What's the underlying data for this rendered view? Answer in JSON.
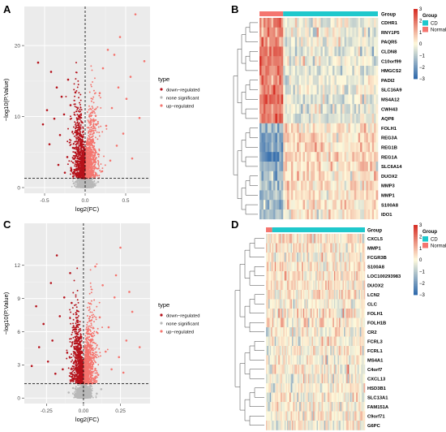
{
  "panels": [
    {
      "id": "A",
      "letter": "A",
      "kind": "volcano",
      "chart_data": {
        "type": "scatter",
        "xlabel": "log2(FC)",
        "ylabel": "−log10(P.Value)",
        "xlim": [
          -0.75,
          0.8
        ],
        "ylim": [
          -0.8,
          25.5
        ],
        "x_ticks": [
          -0.5,
          0.0,
          0.5
        ],
        "x_tick_labels": [
          "-0.5",
          "0.0",
          "0.5"
        ],
        "y_ticks": [
          0,
          10,
          20
        ],
        "y_tick_labels": [
          "0",
          "10",
          "20"
        ],
        "threshold_y": 1.3,
        "threshold_x": 0,
        "grid": true,
        "legend_position": "right",
        "legend_title": "type",
        "series": [
          {
            "name": "down−regulated",
            "color": "#b5121b",
            "points": [
              [
                -0.58,
                17.6
              ],
              [
                -0.42,
                16.3
              ],
              [
                -0.47,
                10.9
              ],
              [
                -0.35,
                14.1
              ],
              [
                -0.29,
                12.8
              ],
              [
                -0.52,
                8.9
              ],
              [
                -0.38,
                9.7
              ],
              [
                -0.21,
                15.2
              ],
              [
                -0.44,
                6.1
              ],
              [
                -0.31,
                7.4
              ],
              [
                -0.26,
                10.3
              ],
              [
                -0.18,
                11.6
              ],
              [
                -0.12,
                13.4
              ],
              [
                -0.09,
                8.1
              ],
              [
                -0.15,
                5.6
              ],
              [
                -0.22,
                4.3
              ],
              [
                -0.33,
                3.2
              ],
              [
                -0.06,
                6.8
              ],
              [
                -0.11,
                3.7
              ],
              [
                -0.04,
                9.2
              ],
              [
                -0.17,
                2.5
              ],
              [
                -0.25,
                2.1
              ],
              [
                -0.08,
                4.9
              ],
              [
                -0.03,
                2.9
              ]
            ]
          },
          {
            "name": "none significant",
            "color": "#b8b8b8",
            "points": [
              [
                -0.05,
                0.2
              ],
              [
                0.03,
                0.5
              ],
              [
                -0.1,
                0.9
              ],
              [
                0.12,
                0.4
              ],
              [
                0.07,
                1.0
              ],
              [
                -0.14,
                0.6
              ],
              [
                0.16,
                0.8
              ],
              [
                0.0,
                0.1
              ]
            ]
          },
          {
            "name": "up−regulated",
            "color": "#f4756f",
            "points": [
              [
                0.62,
                24.4
              ],
              [
                0.73,
                17.8
              ],
              [
                0.43,
                21.2
              ],
              [
                0.36,
                18.7
              ],
              [
                0.51,
                12.5
              ],
              [
                0.28,
                19.4
              ],
              [
                0.56,
                15.6
              ],
              [
                0.41,
                14.1
              ],
              [
                0.67,
                9.8
              ],
              [
                0.33,
                11.2
              ],
              [
                0.47,
                7.6
              ],
              [
                0.22,
                16.8
              ],
              [
                0.18,
                13.3
              ],
              [
                0.26,
                8.7
              ],
              [
                0.39,
                5.9
              ],
              [
                0.13,
                10.1
              ],
              [
                0.09,
                6.4
              ],
              [
                0.31,
                3.8
              ],
              [
                0.16,
                4.7
              ],
              [
                0.06,
                2.8
              ],
              [
                0.21,
                2.3
              ],
              [
                0.58,
                4.1
              ]
            ]
          }
        ]
      }
    },
    {
      "id": "B",
      "letter": "B",
      "kind": "heatmap",
      "chart_data": {
        "type": "heatmap",
        "group_label": "Group",
        "group_bar": {
          "labels": [
            "Normal",
            "CD"
          ],
          "fractions": [
            0.2,
            0.8
          ]
        },
        "legend_group_title": "Group",
        "legend_groups": [
          {
            "name": "CD",
            "color": "#1fc8cc"
          },
          {
            "name": "Normal",
            "color": "#f4756f"
          }
        ],
        "scale_ticks": [
          3,
          2,
          1,
          0,
          -1,
          -2,
          -3
        ],
        "scale_tick_labels": [
          "3",
          "2",
          "1",
          "0",
          "−1",
          "−2",
          "−3"
        ],
        "columns": 60,
        "rows": [
          {
            "label": "CDHR1",
            "normal_z": 1.6,
            "cd_z": -0.3
          },
          {
            "label": "RNY1P5",
            "normal_z": 1.5,
            "cd_z": -0.3
          },
          {
            "label": "PAQR5",
            "normal_z": 1.6,
            "cd_z": -0.3
          },
          {
            "label": "CLDN8",
            "normal_z": 1.9,
            "cd_z": -0.4
          },
          {
            "label": "C10orf99",
            "normal_z": 1.7,
            "cd_z": -0.3
          },
          {
            "label": "HMGCS2",
            "normal_z": 1.8,
            "cd_z": -0.4
          },
          {
            "label": "PADI2",
            "normal_z": 1.6,
            "cd_z": -0.3
          },
          {
            "label": "SLC16A9",
            "normal_z": 1.7,
            "cd_z": -0.3
          },
          {
            "label": "MS4A12",
            "normal_z": 1.9,
            "cd_z": -0.4
          },
          {
            "label": "CWH43",
            "normal_z": 1.8,
            "cd_z": -0.4
          },
          {
            "label": "AQP8",
            "normal_z": 2.0,
            "cd_z": -0.4
          },
          {
            "label": "FOLH1",
            "normal_z": -1.5,
            "cd_z": 0.4
          },
          {
            "label": "REG3A",
            "normal_z": -1.8,
            "cd_z": 0.5
          },
          {
            "label": "REG1B",
            "normal_z": -1.9,
            "cd_z": 0.5
          },
          {
            "label": "REG1A",
            "normal_z": -2.0,
            "cd_z": 0.5
          },
          {
            "label": "SLC6A14",
            "normal_z": -1.6,
            "cd_z": 0.4
          },
          {
            "label": "DUOX2",
            "normal_z": -1.4,
            "cd_z": 0.4
          },
          {
            "label": "MMP3",
            "normal_z": -1.3,
            "cd_z": 0.3
          },
          {
            "label": "MMP1",
            "normal_z": -1.2,
            "cd_z": 0.3
          },
          {
            "label": "S100A8",
            "normal_z": -1.3,
            "cd_z": 0.3
          },
          {
            "label": "IDO1",
            "normal_z": -1.4,
            "cd_z": 0.3
          }
        ]
      }
    },
    {
      "id": "C",
      "letter": "C",
      "kind": "volcano",
      "chart_data": {
        "type": "scatter",
        "xlabel": "log2(FC)",
        "ylabel": "−log10(P.Value)",
        "xlim": [
          -0.4,
          0.45
        ],
        "ylim": [
          -0.5,
          15.8
        ],
        "x_ticks": [
          -0.25,
          0.0,
          0.25
        ],
        "x_tick_labels": [
          "-0.25",
          "0.00",
          "0.25"
        ],
        "y_ticks": [
          0,
          3,
          6,
          9,
          12
        ],
        "y_tick_labels": [
          "0",
          "3",
          "6",
          "9",
          "12"
        ],
        "threshold_y": 1.3,
        "threshold_x": 0,
        "grid": true,
        "legend_position": "right",
        "legend_title": "type",
        "series": [
          {
            "name": "down−regulated",
            "color": "#b5121b",
            "points": [
              [
                -0.32,
                8.3
              ],
              [
                -0.22,
                10.4
              ],
              [
                -0.27,
                6.7
              ],
              [
                -0.18,
                12.9
              ],
              [
                -0.13,
                9.1
              ],
              [
                -0.3,
                4.6
              ],
              [
                -0.21,
                5.2
              ],
              [
                -0.16,
                7.4
              ],
              [
                -0.09,
                11.3
              ],
              [
                -0.24,
                3.3
              ],
              [
                -0.11,
                4.1
              ],
              [
                -0.06,
                6.2
              ],
              [
                -0.14,
                2.6
              ],
              [
                -0.08,
                8.6
              ],
              [
                -0.04,
                3.9
              ],
              [
                -0.19,
                2.2
              ],
              [
                -0.03,
                5.4
              ],
              [
                -0.35,
                2.9
              ]
            ]
          },
          {
            "name": "none significant",
            "color": "#b8b8b8",
            "points": [
              [
                -0.04,
                0.3
              ],
              [
                0.02,
                0.7
              ],
              [
                -0.07,
                0.9
              ],
              [
                0.09,
                0.4
              ],
              [
                0.05,
                1.1
              ],
              [
                -0.1,
                0.5
              ],
              [
                0.12,
                0.8
              ],
              [
                0.0,
                0.2
              ]
            ]
          },
          {
            "name": "up−regulated",
            "color": "#f4756f",
            "points": [
              [
                0.25,
                13.6
              ],
              [
                0.13,
                10.2
              ],
              [
                0.21,
                9.1
              ],
              [
                0.17,
                6.4
              ],
              [
                0.33,
                7.8
              ],
              [
                0.29,
                5.2
              ],
              [
                0.11,
                7.3
              ],
              [
                0.08,
                11.9
              ],
              [
                0.38,
                4.6
              ],
              [
                0.24,
                3.7
              ],
              [
                0.15,
                4.2
              ],
              [
                0.06,
                5.6
              ],
              [
                0.19,
                2.6
              ],
              [
                0.05,
                3.1
              ],
              [
                0.27,
                2.3
              ],
              [
                0.1,
                2.1
              ],
              [
                0.31,
                9.6
              ],
              [
                0.22,
                11.1
              ]
            ]
          }
        ]
      }
    },
    {
      "id": "D",
      "letter": "D",
      "kind": "heatmap",
      "chart_data": {
        "type": "heatmap",
        "group_label": "Group",
        "group_bar": {
          "labels": [
            "Normal",
            "CD"
          ],
          "fractions": [
            0.06,
            0.94
          ]
        },
        "legend_group_title": "Group",
        "legend_groups": [
          {
            "name": "CD",
            "color": "#1fc8cc"
          },
          {
            "name": "Normal",
            "color": "#f4756f"
          }
        ],
        "scale_ticks": [
          3,
          2,
          1,
          0,
          -1,
          -2,
          -3
        ],
        "scale_tick_labels": [
          "3",
          "2",
          "1",
          "0",
          "−1",
          "−2",
          "−3"
        ],
        "columns": 80,
        "rows": [
          {
            "label": "CXCL5",
            "normal_z": 0.3,
            "cd_z": 0.2
          },
          {
            "label": "MMP1",
            "normal_z": 0.2,
            "cd_z": 0.2
          },
          {
            "label": "FCGR3B",
            "normal_z": 0.3,
            "cd_z": 0.2
          },
          {
            "label": "S100A8",
            "normal_z": 0.2,
            "cd_z": 0.2
          },
          {
            "label": "LOC100293983",
            "normal_z": 0.3,
            "cd_z": 0.2
          },
          {
            "label": "DUOX2",
            "normal_z": 0.2,
            "cd_z": 0.2
          },
          {
            "label": "LCN2",
            "normal_z": 0.3,
            "cd_z": 0.2
          },
          {
            "label": "CLC",
            "normal_z": 0.2,
            "cd_z": 0.1
          },
          {
            "label": "FOLH1",
            "normal_z": 0.2,
            "cd_z": 0.2
          },
          {
            "label": "FOLH1B",
            "normal_z": 0.2,
            "cd_z": 0.2
          },
          {
            "label": "CR2",
            "normal_z": -0.2,
            "cd_z": 0.0
          },
          {
            "label": "FCRL3",
            "normal_z": -0.2,
            "cd_z": 0.0
          },
          {
            "label": "FCRL1",
            "normal_z": -0.2,
            "cd_z": 0.0
          },
          {
            "label": "MS4A1",
            "normal_z": -0.2,
            "cd_z": 0.0
          },
          {
            "label": "C4orf7",
            "normal_z": -0.2,
            "cd_z": 0.0
          },
          {
            "label": "CXCL13",
            "normal_z": -0.2,
            "cd_z": 0.0
          },
          {
            "label": "HSD3B1",
            "normal_z": -0.2,
            "cd_z": 0.0
          },
          {
            "label": "SLC13A1",
            "normal_z": -0.2,
            "cd_z": 0.0
          },
          {
            "label": "FAM151A",
            "normal_z": -0.2,
            "cd_z": 0.0
          },
          {
            "label": "C9orf71",
            "normal_z": -0.2,
            "cd_z": 0.0
          },
          {
            "label": "G6PC",
            "normal_z": -0.2,
            "cd_z": 0.0
          }
        ]
      }
    }
  ]
}
